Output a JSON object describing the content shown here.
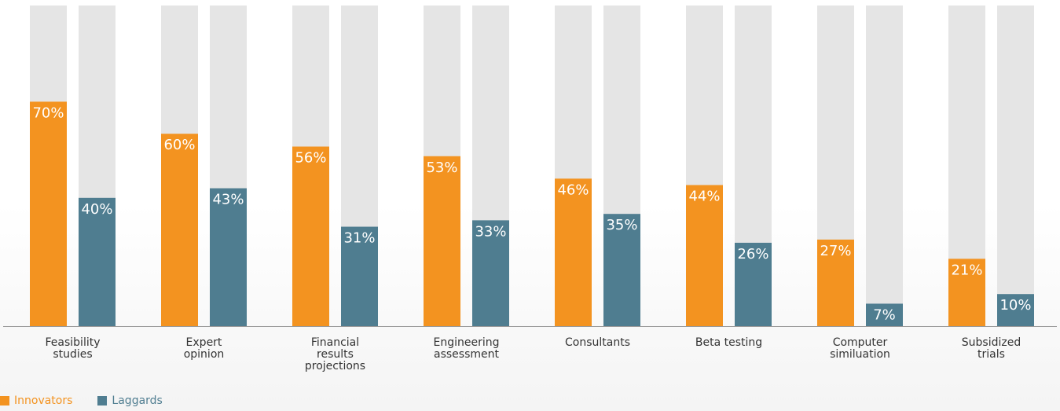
{
  "chart_data": {
    "type": "bar",
    "categories": [
      "Feasibility\nstudies",
      "Expert\nopinion",
      "Financial\nresults\nprojections",
      "Engineering\nassessment",
      "Consultants",
      "Beta testing",
      "Computer\nsimiluation",
      "Subsidized\ntrials"
    ],
    "series": [
      {
        "name": "Innovators",
        "color": "#f39320",
        "values": [
          70,
          60,
          56,
          53,
          46,
          44,
          27,
          21
        ]
      },
      {
        "name": "Laggards",
        "color": "#4f7d90",
        "values": [
          40,
          43,
          31,
          33,
          35,
          26,
          7,
          10
        ]
      }
    ],
    "value_suffix": "%",
    "ylim": [
      0,
      100
    ],
    "track_color": "#e5e5e5",
    "legend_position": "bottom-left",
    "grid": false
  }
}
